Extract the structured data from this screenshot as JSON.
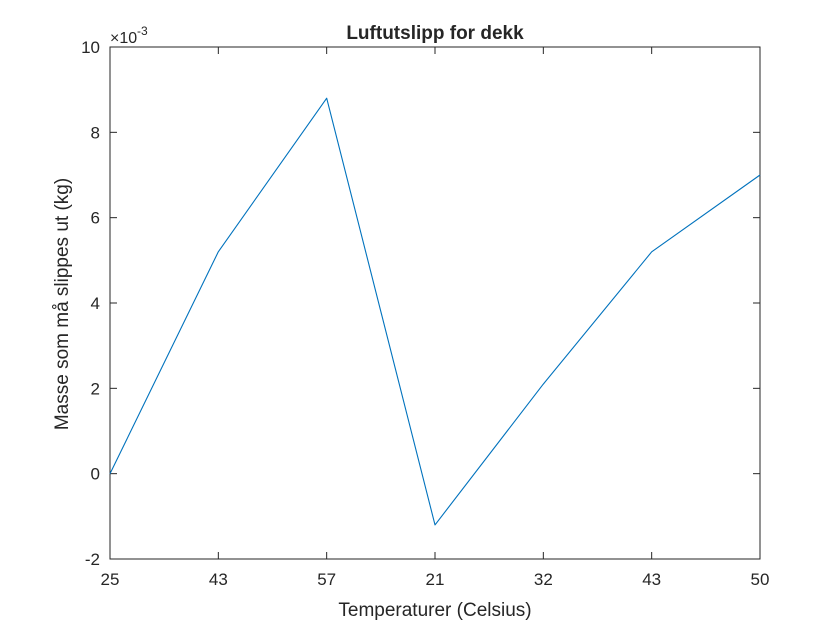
{
  "chart_data": {
    "type": "line",
    "title": "Luftutslipp for dekk",
    "xlabel": "Temperaturer (Celsius)",
    "ylabel": "Masse som må slippes ut (kg)",
    "exponent_label": "×10",
    "exponent_power": "-3",
    "x_tick_labels": [
      "25",
      "43",
      "57",
      "21",
      "32",
      "43",
      "50"
    ],
    "y_tick_labels": [
      "-2",
      "0",
      "2",
      "4",
      "6",
      "8",
      "10"
    ],
    "y_ticks": [
      -2,
      0,
      2,
      4,
      6,
      8,
      10
    ],
    "ylim": [
      -2,
      10
    ],
    "y_scale_factor": 0.001,
    "grid": false,
    "legend": "none",
    "series": [
      {
        "values": [
          0.0,
          5.2,
          8.8,
          -1.2,
          2.1,
          5.2,
          7.0
        ],
        "color": "#0072BD"
      }
    ]
  }
}
